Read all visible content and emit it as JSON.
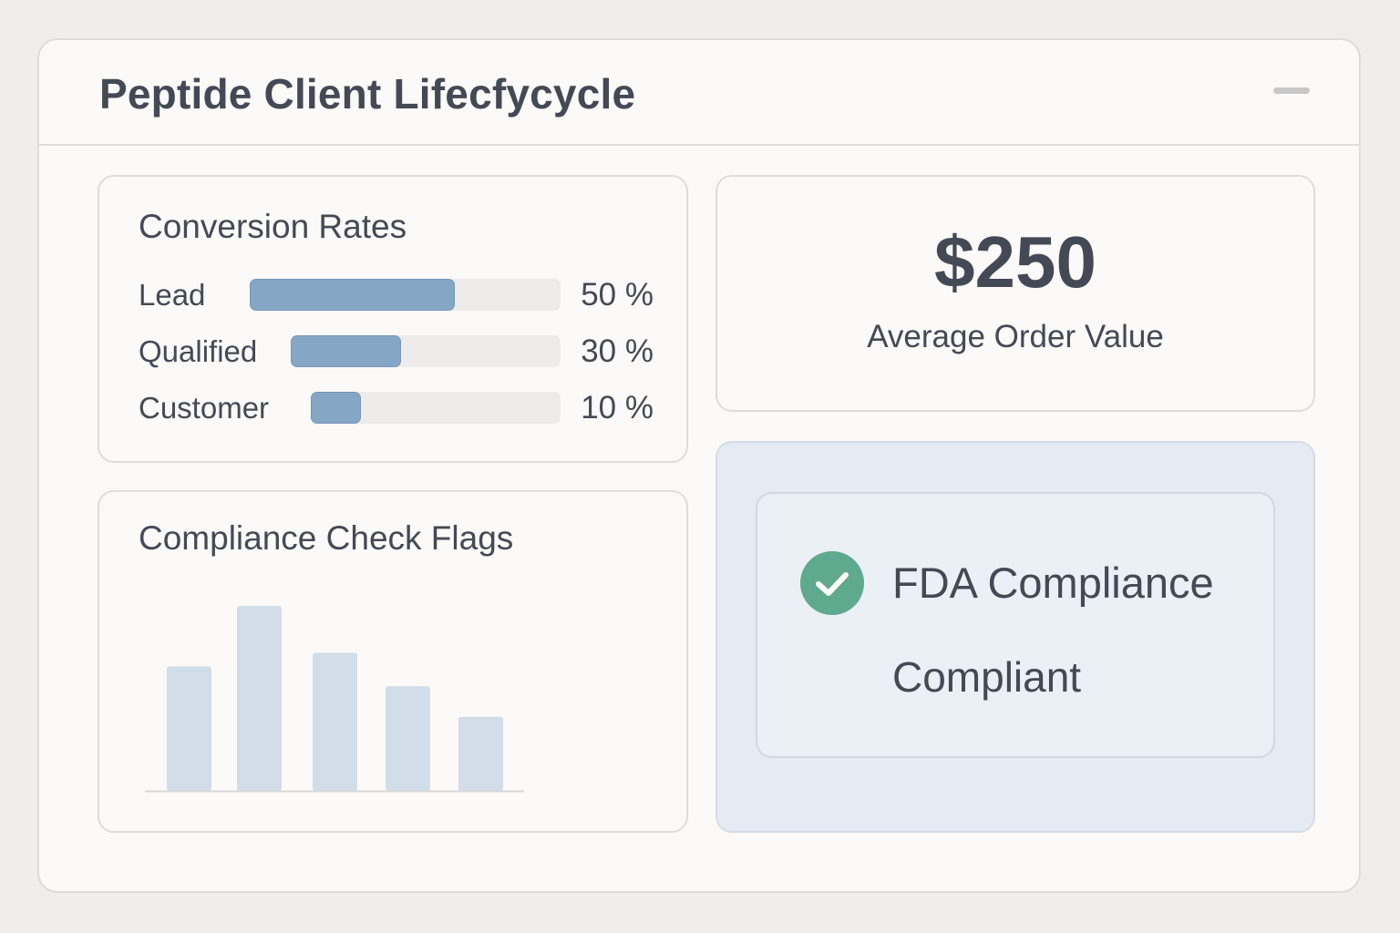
{
  "window": {
    "title": "Peptide Client Lifecfycycle",
    "minimize_icon": "minimize-icon"
  },
  "conversion": {
    "title": "Conversion Rates",
    "rows": [
      {
        "label": "Lead",
        "value_text": "50 %",
        "fill_fraction": 0.66
      },
      {
        "label": "Qualified",
        "value_text": "30 %",
        "fill_fraction": 0.41
      },
      {
        "label": "Customer",
        "value_text": "10 %",
        "fill_fraction": 0.2
      }
    ],
    "colors": {
      "fill": "#86a6c6",
      "track": "#edecea"
    }
  },
  "aov": {
    "value": "$250",
    "label": "Average Order Value"
  },
  "compliance_flags": {
    "title": "Compliance Check Flags"
  },
  "chart_data": {
    "type": "bar",
    "title": "Compliance Check Flags",
    "categories": [
      "",
      "",
      "",
      "",
      ""
    ],
    "values": [
      138,
      205,
      153,
      116,
      82
    ],
    "ylim": [
      0,
      210
    ],
    "grid": false,
    "color": "#d1dde8"
  },
  "fda": {
    "title": "FDA Compliance",
    "status": "Compliant",
    "icon": "check-circle-icon",
    "colors": {
      "check": "#5fa98e",
      "panel": "#e4ebf3"
    }
  }
}
